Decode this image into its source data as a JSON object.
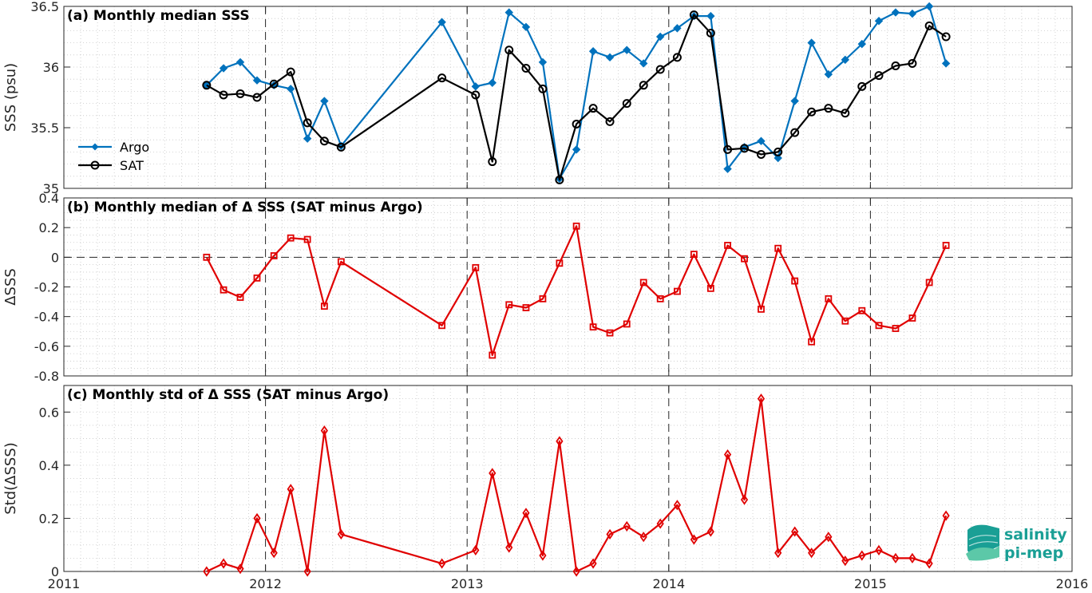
{
  "chart_data": [
    {
      "type": "line",
      "title": "(a) Monthly median SSS",
      "xlabel": "",
      "ylabel": "SSS (psu)",
      "xlim": [
        2011,
        2016
      ],
      "ylim": [
        35,
        36.5
      ],
      "yticks": [
        "35",
        "35.5",
        "36",
        "36.5"
      ],
      "xticks": [
        "2011",
        "2012",
        "2013",
        "2014",
        "2015",
        "2016"
      ],
      "grid": "minor dotted",
      "legend": "left-middle",
      "series": [
        {
          "name": "Argo",
          "color": "#0072BD",
          "marker": "filled-diamond",
          "x": [
            2011.708,
            2011.792,
            2011.875,
            2011.958,
            2012.042,
            2012.125,
            2012.208,
            2012.292,
            2012.375,
            2012.875,
            2013.042,
            2013.125,
            2013.208,
            2013.292,
            2013.375,
            2013.458,
            2013.542,
            2013.625,
            2013.708,
            2013.792,
            2013.875,
            2013.958,
            2014.042,
            2014.125,
            2014.208,
            2014.292,
            2014.375,
            2014.458,
            2014.542,
            2014.625,
            2014.708,
            2014.792,
            2014.875,
            2014.958,
            2015.042,
            2015.125,
            2015.208,
            2015.292,
            2015.375
          ],
          "y": [
            35.85,
            35.99,
            36.04,
            35.89,
            35.85,
            35.82,
            35.41,
            35.72,
            35.35,
            36.37,
            35.84,
            35.87,
            36.45,
            36.33,
            36.04,
            35.08,
            35.32,
            36.13,
            36.08,
            36.14,
            36.03,
            36.25,
            36.32,
            36.42,
            36.42,
            35.16,
            35.34,
            35.39,
            35.25,
            35.72,
            36.2,
            35.94,
            36.06,
            36.19,
            36.38,
            36.45,
            36.44,
            36.5,
            36.03
          ]
        },
        {
          "name": "SAT",
          "color": "#000000",
          "marker": "open-circle",
          "x": [
            2011.708,
            2011.792,
            2011.875,
            2011.958,
            2012.042,
            2012.125,
            2012.208,
            2012.292,
            2012.375,
            2012.875,
            2013.042,
            2013.125,
            2013.208,
            2013.292,
            2013.375,
            2013.458,
            2013.542,
            2013.625,
            2013.708,
            2013.792,
            2013.875,
            2013.958,
            2014.042,
            2014.125,
            2014.208,
            2014.292,
            2014.375,
            2014.458,
            2014.542,
            2014.625,
            2014.708,
            2014.792,
            2014.875,
            2014.958,
            2015.042,
            2015.125,
            2015.208,
            2015.292,
            2015.375
          ],
          "y": [
            35.85,
            35.77,
            35.78,
            35.75,
            35.86,
            35.96,
            35.54,
            35.39,
            35.34,
            35.91,
            35.77,
            35.22,
            36.14,
            35.99,
            35.82,
            35.07,
            35.53,
            35.66,
            35.55,
            35.7,
            35.85,
            35.98,
            36.08,
            36.43,
            36.28,
            35.32,
            35.33,
            35.28,
            35.3,
            35.46,
            35.63,
            35.66,
            35.62,
            35.84,
            35.93,
            36.01,
            36.03,
            36.34,
            36.25
          ]
        }
      ]
    },
    {
      "type": "line",
      "title": "(b) Monthly median of Δ SSS (SAT minus Argo)",
      "xlabel": "",
      "ylabel": "ΔSSS",
      "xlim": [
        2011,
        2016
      ],
      "ylim": [
        -0.8,
        0.4
      ],
      "yticks": [
        "-0.8",
        "-0.6",
        "-0.4",
        "-0.2",
        "0",
        "0.2",
        "0.4"
      ],
      "grid": "minor dotted",
      "zero_line": "dashed",
      "series": [
        {
          "name": "",
          "color": "#E00000",
          "marker": "open-square",
          "x": [
            2011.708,
            2011.792,
            2011.875,
            2011.958,
            2012.042,
            2012.125,
            2012.208,
            2012.292,
            2012.375,
            2012.875,
            2013.042,
            2013.125,
            2013.208,
            2013.292,
            2013.375,
            2013.458,
            2013.542,
            2013.625,
            2013.708,
            2013.792,
            2013.875,
            2013.958,
            2014.042,
            2014.125,
            2014.208,
            2014.292,
            2014.375,
            2014.458,
            2014.542,
            2014.625,
            2014.708,
            2014.792,
            2014.875,
            2014.958,
            2015.042,
            2015.125,
            2015.208,
            2015.292,
            2015.375
          ],
          "y": [
            0.0,
            -0.22,
            -0.27,
            -0.14,
            0.01,
            0.13,
            0.12,
            -0.33,
            -0.03,
            -0.46,
            -0.07,
            -0.66,
            -0.32,
            -0.34,
            -0.28,
            -0.04,
            0.21,
            -0.47,
            -0.51,
            -0.45,
            -0.17,
            -0.28,
            -0.23,
            0.02,
            -0.21,
            0.08,
            -0.01,
            -0.35,
            0.06,
            -0.16,
            -0.57,
            -0.28,
            -0.43,
            -0.36,
            -0.46,
            -0.48,
            -0.41,
            -0.17,
            0.08
          ]
        }
      ]
    },
    {
      "type": "line",
      "title": "(c) Monthly std of Δ SSS (SAT minus Argo)",
      "xlabel": "",
      "ylabel": "Std(ΔSSS)",
      "xlim": [
        2011,
        2016
      ],
      "ylim": [
        0,
        0.7
      ],
      "yticks": [
        "0",
        "0.2",
        "0.4",
        "0.6"
      ],
      "grid": "minor dotted",
      "series": [
        {
          "name": "",
          "color": "#E00000",
          "marker": "open-diamond",
          "x": [
            2011.708,
            2011.792,
            2011.875,
            2011.958,
            2012.042,
            2012.125,
            2012.208,
            2012.292,
            2012.375,
            2012.875,
            2013.042,
            2013.125,
            2013.208,
            2013.292,
            2013.375,
            2013.458,
            2013.542,
            2013.625,
            2013.708,
            2013.792,
            2013.875,
            2013.958,
            2014.042,
            2014.125,
            2014.208,
            2014.292,
            2014.375,
            2014.458,
            2014.542,
            2014.625,
            2014.708,
            2014.792,
            2014.875,
            2014.958,
            2015.042,
            2015.125,
            2015.208,
            2015.292,
            2015.375
          ],
          "y": [
            0.0,
            0.03,
            0.01,
            0.2,
            0.07,
            0.31,
            0.0,
            0.53,
            0.14,
            0.03,
            0.08,
            0.37,
            0.09,
            0.22,
            0.06,
            0.49,
            0.0,
            0.03,
            0.14,
            0.17,
            0.13,
            0.18,
            0.25,
            0.12,
            0.15,
            0.44,
            0.27,
            0.65,
            0.07,
            0.15,
            0.07,
            0.13,
            0.04,
            0.06,
            0.08,
            0.05,
            0.05,
            0.03,
            0.21
          ]
        }
      ]
    }
  ],
  "logo": {
    "line1": "salinity",
    "line2": "pi-mep",
    "color": "#1a9f95"
  }
}
